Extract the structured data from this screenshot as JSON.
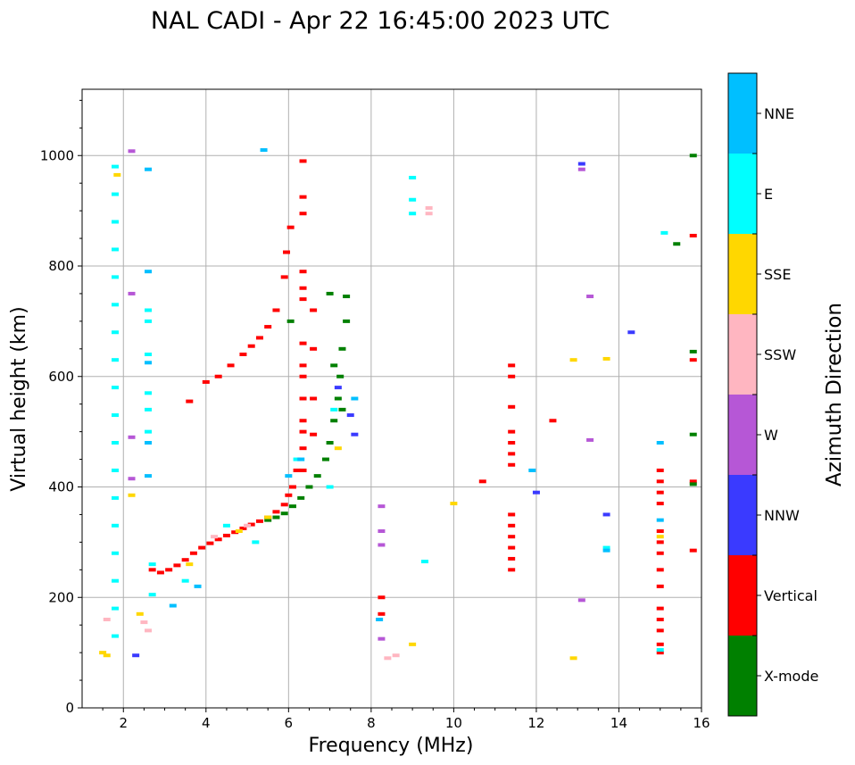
{
  "chart_data": {
    "type": "scatter",
    "title": "NAL CADI - Apr 22 16:45:00 2023 UTC",
    "xlabel": "Frequency (MHz)",
    "ylabel": "Virtual height (km)",
    "xlim": [
      1,
      16
    ],
    "ylim": [
      0,
      1120
    ],
    "xticks": [
      2,
      4,
      6,
      8,
      10,
      12,
      14,
      16
    ],
    "yticks": [
      0,
      200,
      400,
      600,
      800,
      1000
    ],
    "grid": true,
    "colorbar": {
      "title": "Azimuth Direction",
      "categories": [
        {
          "name": "X-mode",
          "color": "#008000"
        },
        {
          "name": "Vertical",
          "color": "#ff0000"
        },
        {
          "name": "NNW",
          "color": "#3a3aff"
        },
        {
          "name": "W",
          "color": "#b657d6"
        },
        {
          "name": "SSW",
          "color": "#ffb6c1"
        },
        {
          "name": "SSE",
          "color": "#ffd700"
        },
        {
          "name": "E",
          "color": "#00ffff"
        },
        {
          "name": "NNE",
          "color": "#00bfff"
        }
      ]
    },
    "series": [
      {
        "name": "Vertical",
        "points": [
          [
            2.7,
            250
          ],
          [
            2.9,
            245
          ],
          [
            3.1,
            250
          ],
          [
            3.3,
            258
          ],
          [
            3.5,
            268
          ],
          [
            3.7,
            280
          ],
          [
            3.9,
            290
          ],
          [
            4.1,
            298
          ],
          [
            4.3,
            305
          ],
          [
            4.5,
            312
          ],
          [
            4.7,
            318
          ],
          [
            4.9,
            325
          ],
          [
            5.1,
            332
          ],
          [
            5.3,
            338
          ],
          [
            5.5,
            345
          ],
          [
            5.7,
            355
          ],
          [
            5.9,
            368
          ],
          [
            6.0,
            385
          ],
          [
            6.1,
            400
          ],
          [
            6.2,
            430
          ],
          [
            3.6,
            555
          ],
          [
            4.0,
            590
          ],
          [
            4.3,
            600
          ],
          [
            4.6,
            620
          ],
          [
            4.9,
            640
          ],
          [
            5.1,
            655
          ],
          [
            5.3,
            670
          ],
          [
            5.5,
            690
          ],
          [
            5.7,
            720
          ],
          [
            5.9,
            780
          ],
          [
            5.95,
            825
          ],
          [
            6.05,
            870
          ],
          [
            6.35,
            990
          ],
          [
            6.35,
            925
          ],
          [
            6.35,
            895
          ],
          [
            6.35,
            790
          ],
          [
            6.35,
            760
          ],
          [
            6.35,
            740
          ],
          [
            6.35,
            660
          ],
          [
            6.35,
            620
          ],
          [
            6.35,
            600
          ],
          [
            6.35,
            560
          ],
          [
            6.35,
            520
          ],
          [
            6.35,
            500
          ],
          [
            6.35,
            470
          ],
          [
            6.35,
            430
          ],
          [
            6.6,
            720
          ],
          [
            6.6,
            650
          ],
          [
            6.6,
            560
          ],
          [
            6.6,
            495
          ],
          [
            11.4,
            620
          ],
          [
            11.4,
            600
          ],
          [
            11.4,
            545
          ],
          [
            11.4,
            500
          ],
          [
            11.4,
            480
          ],
          [
            11.4,
            460
          ],
          [
            11.4,
            440
          ],
          [
            11.4,
            350
          ],
          [
            11.4,
            330
          ],
          [
            11.4,
            310
          ],
          [
            11.4,
            290
          ],
          [
            11.4,
            270
          ],
          [
            11.4,
            250
          ],
          [
            12.4,
            520
          ],
          [
            10.7,
            410
          ],
          [
            8.25,
            200
          ],
          [
            8.25,
            170
          ],
          [
            15.0,
            430
          ],
          [
            15.0,
            410
          ],
          [
            15.0,
            390
          ],
          [
            15.0,
            370
          ],
          [
            15.0,
            320
          ],
          [
            15.0,
            300
          ],
          [
            15.0,
            280
          ],
          [
            15.0,
            250
          ],
          [
            15.0,
            220
          ],
          [
            15.0,
            180
          ],
          [
            15.0,
            160
          ],
          [
            15.0,
            140
          ],
          [
            15.0,
            115
          ],
          [
            15.0,
            100
          ],
          [
            15.8,
            855
          ],
          [
            15.8,
            630
          ],
          [
            15.8,
            410
          ],
          [
            15.8,
            285
          ]
        ]
      },
      {
        "name": "X-mode",
        "points": [
          [
            5.5,
            340
          ],
          [
            5.7,
            345
          ],
          [
            5.9,
            352
          ],
          [
            6.1,
            365
          ],
          [
            6.3,
            380
          ],
          [
            6.5,
            400
          ],
          [
            6.7,
            420
          ],
          [
            6.9,
            450
          ],
          [
            7.0,
            480
          ],
          [
            7.1,
            520
          ],
          [
            7.2,
            560
          ],
          [
            7.25,
            600
          ],
          [
            7.3,
            650
          ],
          [
            7.4,
            700
          ],
          [
            7.4,
            745
          ],
          [
            7.0,
            750
          ],
          [
            7.1,
            620
          ],
          [
            7.3,
            540
          ],
          [
            6.05,
            700
          ],
          [
            15.4,
            840
          ],
          [
            15.8,
            1000
          ],
          [
            15.8,
            645
          ],
          [
            15.8,
            495
          ],
          [
            15.8,
            405
          ]
        ]
      },
      {
        "name": "NNW",
        "points": [
          [
            7.5,
            530
          ],
          [
            7.6,
            495
          ],
          [
            7.2,
            580
          ],
          [
            12.0,
            390
          ],
          [
            13.1,
            985
          ],
          [
            14.3,
            680
          ],
          [
            13.7,
            350
          ],
          [
            2.3,
            95
          ]
        ]
      },
      {
        "name": "W",
        "points": [
          [
            2.2,
            1008
          ],
          [
            2.2,
            750
          ],
          [
            2.2,
            490
          ],
          [
            2.2,
            415
          ],
          [
            8.25,
            365
          ],
          [
            8.25,
            320
          ],
          [
            8.25,
            295
          ],
          [
            8.25,
            125
          ],
          [
            13.1,
            975
          ],
          [
            13.3,
            745
          ],
          [
            13.3,
            485
          ],
          [
            13.1,
            195
          ]
        ]
      },
      {
        "name": "SSW",
        "points": [
          [
            1.6,
            160
          ],
          [
            2.5,
            155
          ],
          [
            2.6,
            140
          ],
          [
            8.4,
            90
          ],
          [
            8.6,
            95
          ],
          [
            9.4,
            905
          ],
          [
            9.4,
            895
          ],
          [
            4.2,
            310
          ],
          [
            5.0,
            330
          ]
        ]
      },
      {
        "name": "SSE",
        "points": [
          [
            1.5,
            100
          ],
          [
            1.6,
            95
          ],
          [
            1.85,
            965
          ],
          [
            2.2,
            385
          ],
          [
            2.4,
            170
          ],
          [
            3.6,
            260
          ],
          [
            4.8,
            320
          ],
          [
            5.5,
            345
          ],
          [
            7.2,
            470
          ],
          [
            9.0,
            115
          ],
          [
            10.0,
            370
          ],
          [
            12.9,
            630
          ],
          [
            12.9,
            90
          ],
          [
            13.7,
            632
          ],
          [
            15.0,
            310
          ]
        ]
      },
      {
        "name": "E",
        "points": [
          [
            1.8,
            980
          ],
          [
            1.8,
            930
          ],
          [
            1.8,
            880
          ],
          [
            1.8,
            830
          ],
          [
            1.8,
            780
          ],
          [
            1.8,
            730
          ],
          [
            1.8,
            680
          ],
          [
            1.8,
            630
          ],
          [
            1.8,
            580
          ],
          [
            1.8,
            530
          ],
          [
            1.8,
            480
          ],
          [
            1.8,
            430
          ],
          [
            1.8,
            380
          ],
          [
            1.8,
            330
          ],
          [
            1.8,
            280
          ],
          [
            1.8,
            230
          ],
          [
            1.8,
            180
          ],
          [
            1.8,
            130
          ],
          [
            2.6,
            720
          ],
          [
            2.6,
            700
          ],
          [
            2.6,
            640
          ],
          [
            2.6,
            570
          ],
          [
            2.6,
            540
          ],
          [
            2.6,
            500
          ],
          [
            2.7,
            260
          ],
          [
            2.7,
            205
          ],
          [
            3.5,
            230
          ],
          [
            9.0,
            960
          ],
          [
            9.0,
            920
          ],
          [
            9.0,
            895
          ],
          [
            9.3,
            265
          ],
          [
            13.7,
            290
          ],
          [
            15.1,
            860
          ],
          [
            15.0,
            105
          ],
          [
            6.2,
            450
          ],
          [
            7.1,
            540
          ],
          [
            7.0,
            400
          ],
          [
            4.5,
            330
          ],
          [
            5.2,
            300
          ]
        ]
      },
      {
        "name": "NNE",
        "points": [
          [
            5.4,
            1010
          ],
          [
            2.6,
            975
          ],
          [
            2.6,
            790
          ],
          [
            2.6,
            625
          ],
          [
            2.6,
            480
          ],
          [
            2.6,
            420
          ],
          [
            3.2,
            185
          ],
          [
            3.8,
            220
          ],
          [
            7.6,
            560
          ],
          [
            11.9,
            430
          ],
          [
            13.7,
            285
          ],
          [
            15.0,
            480
          ],
          [
            15.0,
            340
          ],
          [
            8.2,
            160
          ],
          [
            6.3,
            450
          ],
          [
            6.0,
            420
          ]
        ]
      }
    ]
  }
}
